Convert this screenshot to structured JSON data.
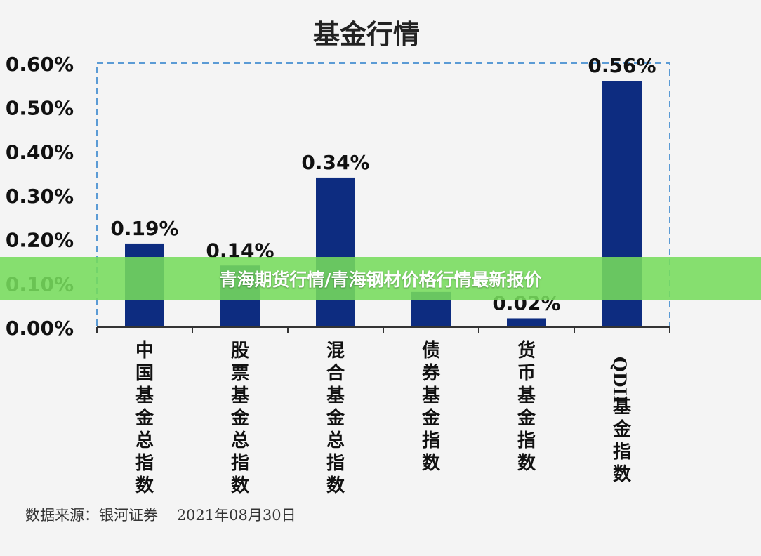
{
  "chart_data": {
    "type": "bar",
    "title": "基金行情",
    "categories": [
      "中国基金总指数",
      "股票基金总指数",
      "混合基金总指数",
      "债券基金指数",
      "货币基金指数",
      "QDII基金指数"
    ],
    "values": [
      0.19,
      0.14,
      0.34,
      0.08,
      0.02,
      0.56
    ],
    "data_labels": [
      "0.19%",
      "0.14%",
      "0.34%",
      "",
      "0.02%",
      "0.56%"
    ],
    "ylim": [
      0,
      0.6
    ],
    "yticks": [
      0,
      0.1,
      0.2,
      0.3,
      0.4,
      0.5,
      0.6
    ],
    "ytick_labels": [
      "0.00%",
      "0.10%",
      "0.20%",
      "0.30%",
      "0.40%",
      "0.50%",
      "0.60%"
    ],
    "xlabel": "",
    "ylabel": "",
    "grid": false,
    "bar_color": "#0d2c80",
    "border_color": "#5b9bd5"
  },
  "source_text": "数据来源：银河证券    2021年08月30日",
  "banner_text": "青海期货行情/青海钢材价格行情最新报价"
}
